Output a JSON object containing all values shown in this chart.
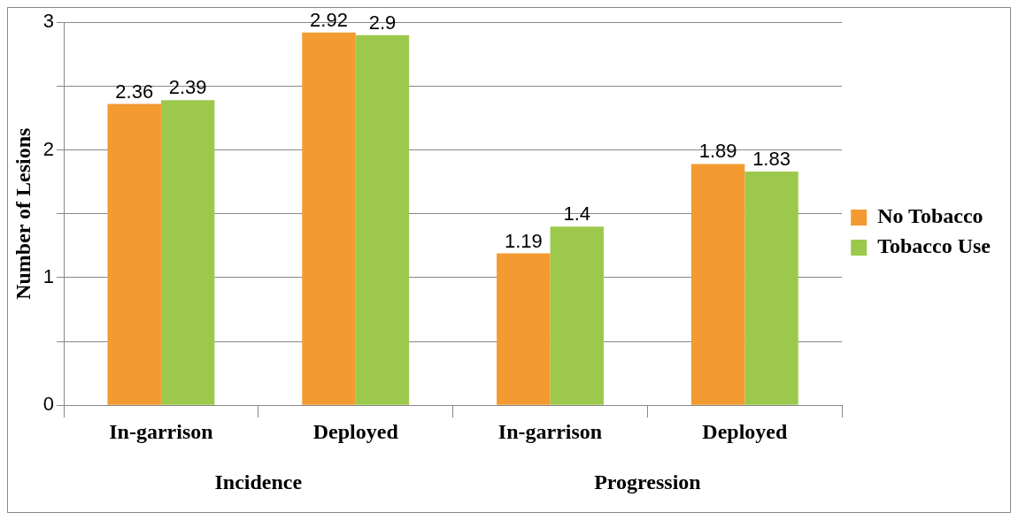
{
  "chart_data": {
    "type": "bar",
    "ylabel": "Number of Lesions",
    "categories": [
      "In-garrison",
      "Deployed",
      "In-garrison",
      "Deployed"
    ],
    "series": [
      {
        "name": "No Tobacco",
        "color": "#f39a30",
        "values": [
          2.36,
          2.92,
          1.19,
          1.89
        ]
      },
      {
        "name": "Tobacco Use",
        "color": "#9cc94c",
        "values": [
          2.39,
          2.9,
          1.4,
          1.83
        ]
      }
    ],
    "ylim": [
      0,
      3
    ],
    "yticks": [
      0,
      {
        "value": 0.5,
        "label": null
      },
      1,
      {
        "value": 1.5,
        "label": null
      },
      2,
      {
        "value": 2.5,
        "label": null
      },
      3
    ],
    "grid": "y",
    "legend": "right",
    "data_labels": true,
    "annotations": [
      "Incidence",
      "Progression"
    ]
  }
}
